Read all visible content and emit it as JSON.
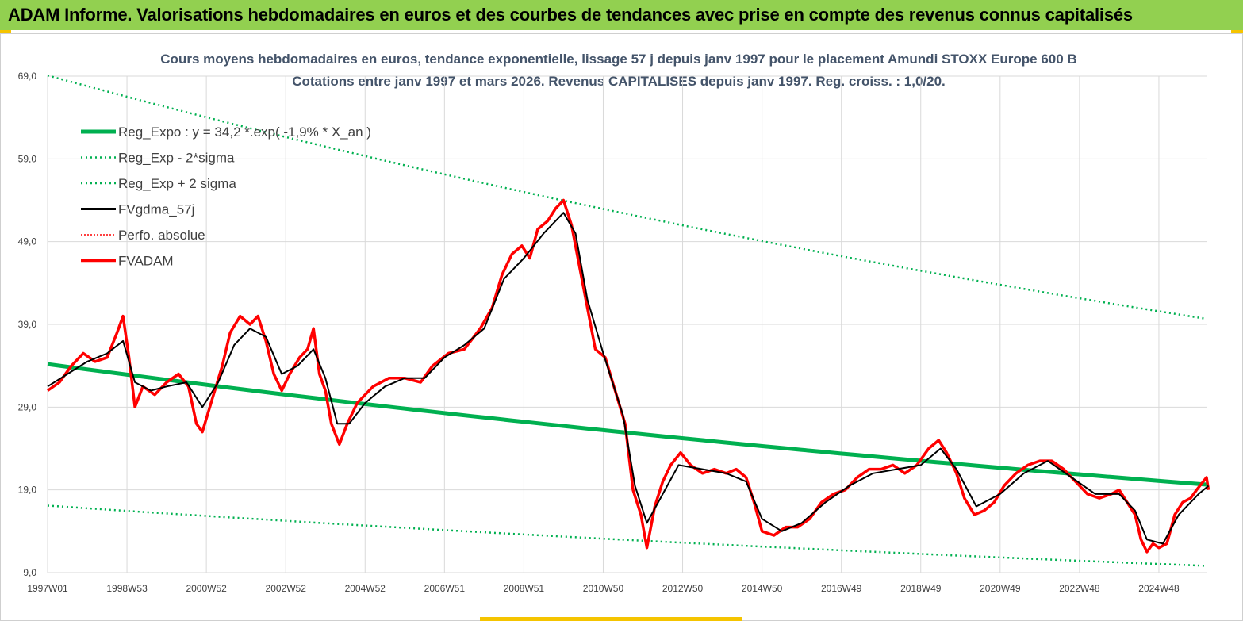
{
  "header": {
    "title": "ADAM Informe. Valorisations hebdomadaires en euros et des courbes de tendances avec prise en compte des revenus connus capitalisés"
  },
  "colors": {
    "banner": "#92d050",
    "trend": "#00b050",
    "fvadam": "#ff0000",
    "fvgdma": "#000000",
    "perfo": "#ff0000",
    "grid": "#d9d9d9"
  },
  "chart_data": {
    "type": "line",
    "title": "Cours moyens hebdomadaires en euros, tendance exponentielle, lissage 57 j depuis janv 1997  pour le placement Amundi STOXX Europe 600 B",
    "subtitle": "Cotations entre janv 1997 et mars 2026. Revenus  CAPITALISES  depuis janv 1997. Reg. croiss. : 1,0/20.",
    "xlabel": "",
    "ylabel": "",
    "x_range": [
      1997.0,
      2026.2
    ],
    "ylim": [
      9,
      69
    ],
    "y_ticks": [
      "69,0",
      "59,0",
      "49,0",
      "39,0",
      "29,0",
      "19,0",
      "9,0"
    ],
    "y_tick_values": [
      69,
      59,
      49,
      39,
      29,
      19,
      9
    ],
    "x_ticks": [
      "1997W01",
      "1998W53",
      "2000W52",
      "2002W52",
      "2004W52",
      "2006W51",
      "2008W51",
      "2010W50",
      "2012W50",
      "2014W50",
      "2016W49",
      "2018W49",
      "2020W49",
      "2022W48",
      "2024W48"
    ],
    "x_tick_values": [
      1997.0,
      1999.0,
      2001.0,
      2003.0,
      2005.0,
      2007.0,
      2009.0,
      2011.0,
      2013.0,
      2015.0,
      2017.0,
      2019.0,
      2021.0,
      2023.0,
      2025.0
    ],
    "legend": [
      {
        "key": "reg",
        "label": "Reg_Expo : y = 34,2 *.exp( -1,9% *  X_an )"
      },
      {
        "key": "lo",
        "label": "Reg_Exp - 2*sigma"
      },
      {
        "key": "hi",
        "label": "Reg_Exp + 2 sigma"
      },
      {
        "key": "fvg",
        "label": "FVgdma_57j"
      },
      {
        "key": "perfo",
        "label": "Perfo. absolue"
      },
      {
        "key": "fva",
        "label": "FVADAM"
      }
    ],
    "legend_position": "top-left",
    "trend": {
      "a": 34.2,
      "b": -0.019,
      "hi_factor": 2.02,
      "lo_factor": 0.5
    },
    "series": [
      {
        "name": "FVADAM",
        "points": [
          [
            1997.0,
            31.0
          ],
          [
            1997.3,
            32.0
          ],
          [
            1997.6,
            34.0
          ],
          [
            1997.9,
            35.5
          ],
          [
            1998.2,
            34.5
          ],
          [
            1998.5,
            35.0
          ],
          [
            1998.75,
            38.0
          ],
          [
            1998.9,
            40.0
          ],
          [
            1999.05,
            35.0
          ],
          [
            1999.2,
            29.0
          ],
          [
            1999.4,
            31.5
          ],
          [
            1999.7,
            30.5
          ],
          [
            2000.0,
            32.0
          ],
          [
            2000.3,
            33.0
          ],
          [
            2000.55,
            31.5
          ],
          [
            2000.75,
            27.0
          ],
          [
            2000.9,
            26.0
          ],
          [
            2001.15,
            30.0
          ],
          [
            2001.4,
            34.0
          ],
          [
            2001.6,
            38.0
          ],
          [
            2001.85,
            40.0
          ],
          [
            2002.1,
            39.0
          ],
          [
            2002.3,
            40.0
          ],
          [
            2002.5,
            37.0
          ],
          [
            2002.7,
            33.0
          ],
          [
            2002.9,
            31.0
          ],
          [
            2003.1,
            33.0
          ],
          [
            2003.35,
            35.0
          ],
          [
            2003.55,
            36.0
          ],
          [
            2003.7,
            38.5
          ],
          [
            2003.85,
            33.0
          ],
          [
            2004.0,
            31.0
          ],
          [
            2004.15,
            27.0
          ],
          [
            2004.35,
            24.5
          ],
          [
            2004.55,
            27.0
          ],
          [
            2004.8,
            29.5
          ],
          [
            2005.2,
            31.5
          ],
          [
            2005.6,
            32.5
          ],
          [
            2006.0,
            32.5
          ],
          [
            2006.4,
            32.0
          ],
          [
            2006.7,
            34.0
          ],
          [
            2007.1,
            35.5
          ],
          [
            2007.5,
            36.0
          ],
          [
            2007.9,
            38.5
          ],
          [
            2008.2,
            41.0
          ],
          [
            2008.45,
            45.0
          ],
          [
            2008.7,
            47.5
          ],
          [
            2008.95,
            48.5
          ],
          [
            2009.15,
            47.0
          ],
          [
            2009.35,
            50.5
          ],
          [
            2009.6,
            51.5
          ],
          [
            2009.8,
            53.0
          ],
          [
            2010.0,
            54.0
          ],
          [
            2010.2,
            51.0
          ],
          [
            2010.4,
            46.0
          ],
          [
            2010.6,
            41.0
          ],
          [
            2010.8,
            36.0
          ],
          [
            2011.05,
            35.0
          ],
          [
            2011.3,
            31.0
          ],
          [
            2011.55,
            27.0
          ],
          [
            2011.75,
            19.0
          ],
          [
            2011.95,
            16.0
          ],
          [
            2012.1,
            12.0
          ],
          [
            2012.3,
            17.0
          ],
          [
            2012.5,
            20.0
          ],
          [
            2012.7,
            22.0
          ],
          [
            2012.95,
            23.5
          ],
          [
            2013.2,
            22.0
          ],
          [
            2013.5,
            21.0
          ],
          [
            2013.8,
            21.5
          ],
          [
            2014.1,
            21.0
          ],
          [
            2014.35,
            21.5
          ],
          [
            2014.6,
            20.5
          ],
          [
            2014.8,
            17.5
          ],
          [
            2015.0,
            14.0
          ],
          [
            2015.3,
            13.5
          ],
          [
            2015.6,
            14.5
          ],
          [
            2015.9,
            14.5
          ],
          [
            2016.2,
            15.5
          ],
          [
            2016.5,
            17.5
          ],
          [
            2016.8,
            18.5
          ],
          [
            2017.1,
            19.0
          ],
          [
            2017.4,
            20.5
          ],
          [
            2017.7,
            21.5
          ],
          [
            2018.0,
            21.5
          ],
          [
            2018.3,
            22.0
          ],
          [
            2018.6,
            21.0
          ],
          [
            2018.9,
            22.0
          ],
          [
            2019.2,
            24.0
          ],
          [
            2019.45,
            25.0
          ],
          [
            2019.65,
            23.5
          ],
          [
            2019.9,
            21.0
          ],
          [
            2020.1,
            18.0
          ],
          [
            2020.35,
            16.0
          ],
          [
            2020.6,
            16.5
          ],
          [
            2020.85,
            17.5
          ],
          [
            2021.1,
            19.5
          ],
          [
            2021.4,
            21.0
          ],
          [
            2021.7,
            22.0
          ],
          [
            2022.0,
            22.5
          ],
          [
            2022.3,
            22.5
          ],
          [
            2022.6,
            21.5
          ],
          [
            2022.9,
            20.0
          ],
          [
            2023.2,
            18.5
          ],
          [
            2023.5,
            18.0
          ],
          [
            2023.8,
            18.5
          ],
          [
            2024.0,
            19.0
          ],
          [
            2024.2,
            17.5
          ],
          [
            2024.4,
            16.0
          ],
          [
            2024.55,
            13.0
          ],
          [
            2024.7,
            11.5
          ],
          [
            2024.85,
            12.5
          ],
          [
            2025.0,
            12.0
          ],
          [
            2025.2,
            12.5
          ],
          [
            2025.4,
            16.0
          ],
          [
            2025.6,
            17.5
          ],
          [
            2025.8,
            18.0
          ],
          [
            2025.95,
            19.0
          ],
          [
            2026.2,
            20.5
          ],
          [
            2026.25,
            19.0
          ]
        ]
      },
      {
        "name": "FVgdma_57j",
        "points": [
          [
            1997.0,
            31.5
          ],
          [
            1997.5,
            33.0
          ],
          [
            1998.0,
            34.5
          ],
          [
            1998.5,
            35.5
          ],
          [
            1998.9,
            37.0
          ],
          [
            1999.2,
            32.0
          ],
          [
            1999.6,
            31.0
          ],
          [
            2000.0,
            31.5
          ],
          [
            2000.5,
            32.0
          ],
          [
            2000.9,
            29.0
          ],
          [
            2001.3,
            32.0
          ],
          [
            2001.7,
            36.5
          ],
          [
            2002.1,
            38.5
          ],
          [
            2002.5,
            37.5
          ],
          [
            2002.9,
            33.0
          ],
          [
            2003.3,
            34.0
          ],
          [
            2003.7,
            36.0
          ],
          [
            2004.0,
            32.5
          ],
          [
            2004.3,
            27.0
          ],
          [
            2004.6,
            27.0
          ],
          [
            2005.0,
            29.5
          ],
          [
            2005.5,
            31.5
          ],
          [
            2006.0,
            32.5
          ],
          [
            2006.5,
            32.5
          ],
          [
            2007.0,
            35.0
          ],
          [
            2007.5,
            36.5
          ],
          [
            2008.0,
            38.5
          ],
          [
            2008.5,
            44.5
          ],
          [
            2009.0,
            47.0
          ],
          [
            2009.5,
            50.0
          ],
          [
            2010.0,
            52.5
          ],
          [
            2010.3,
            50.0
          ],
          [
            2010.6,
            42.0
          ],
          [
            2011.0,
            35.5
          ],
          [
            2011.5,
            28.0
          ],
          [
            2011.8,
            19.5
          ],
          [
            2012.1,
            15.0
          ],
          [
            2012.5,
            18.5
          ],
          [
            2012.9,
            22.0
          ],
          [
            2013.5,
            21.5
          ],
          [
            2014.1,
            21.0
          ],
          [
            2014.6,
            20.0
          ],
          [
            2015.0,
            15.5
          ],
          [
            2015.5,
            14.0
          ],
          [
            2016.0,
            15.0
          ],
          [
            2016.6,
            17.5
          ],
          [
            2017.2,
            19.5
          ],
          [
            2017.8,
            21.0
          ],
          [
            2018.4,
            21.5
          ],
          [
            2019.0,
            22.0
          ],
          [
            2019.5,
            24.0
          ],
          [
            2019.9,
            21.5
          ],
          [
            2020.4,
            17.0
          ],
          [
            2021.0,
            18.5
          ],
          [
            2021.6,
            21.0
          ],
          [
            2022.2,
            22.5
          ],
          [
            2022.8,
            20.5
          ],
          [
            2023.4,
            18.5
          ],
          [
            2024.0,
            18.5
          ],
          [
            2024.4,
            16.5
          ],
          [
            2024.7,
            13.0
          ],
          [
            2025.1,
            12.5
          ],
          [
            2025.5,
            16.0
          ],
          [
            2026.0,
            18.5
          ],
          [
            2026.25,
            19.5
          ]
        ]
      }
    ]
  }
}
